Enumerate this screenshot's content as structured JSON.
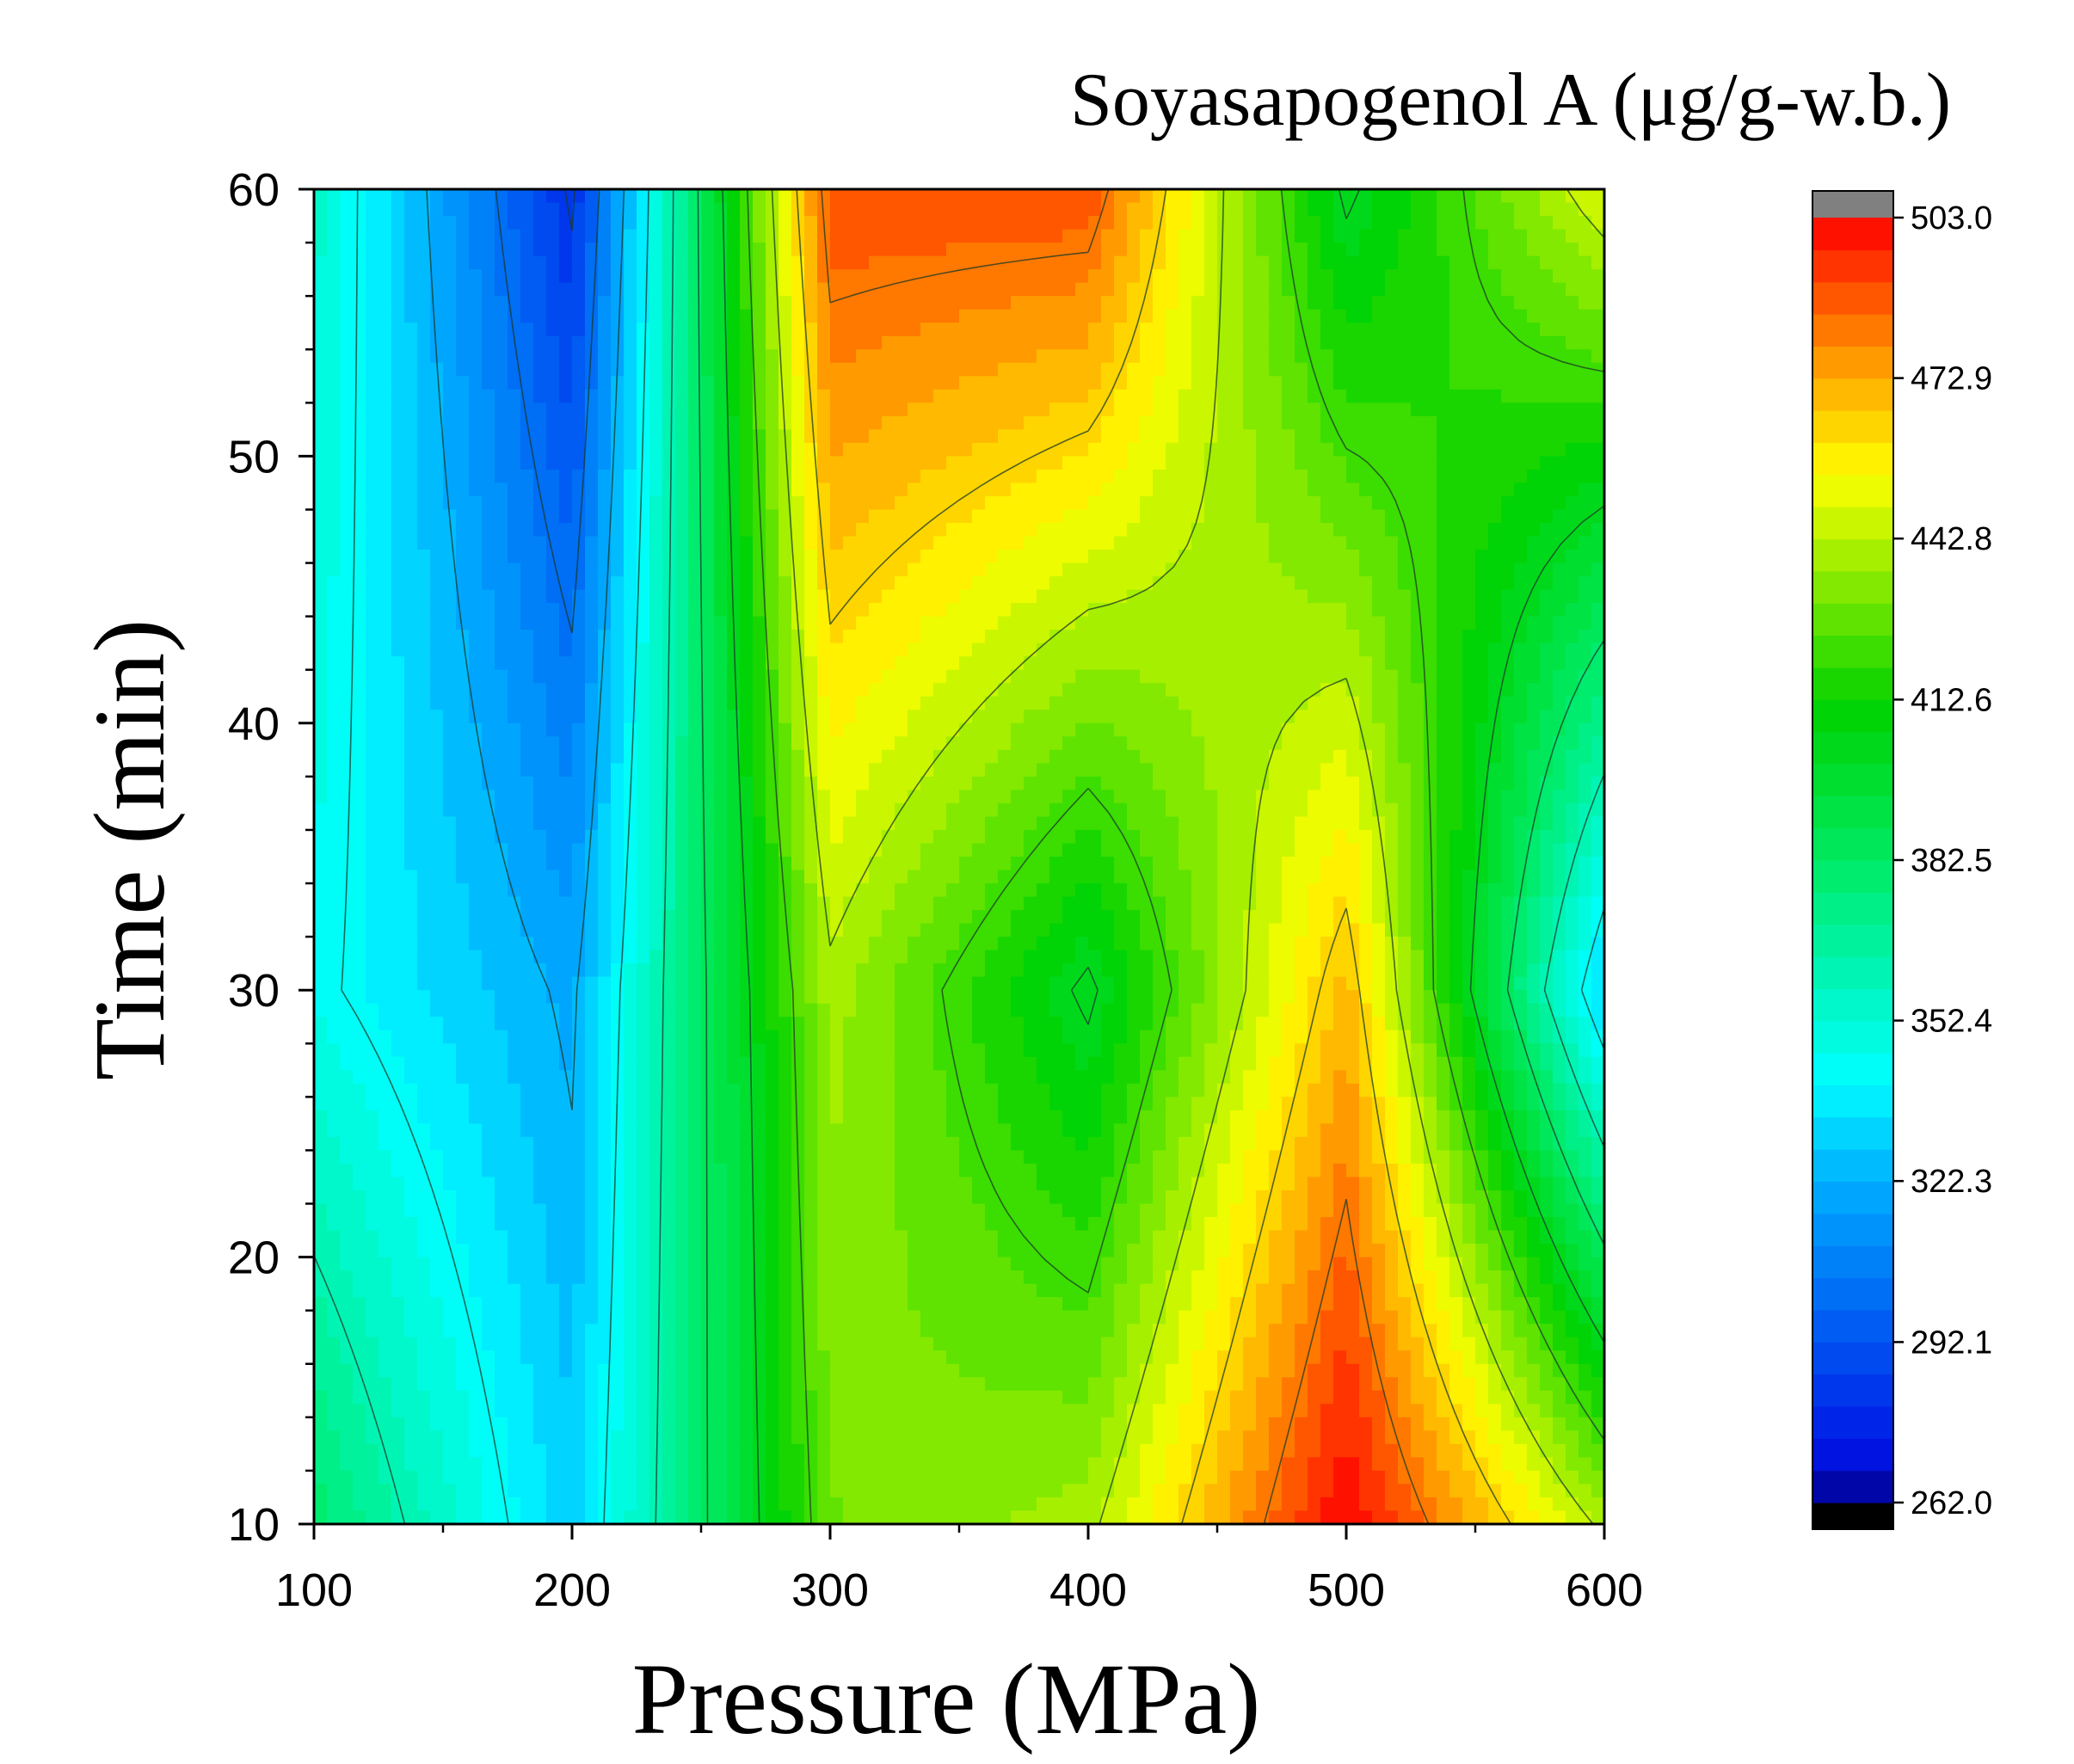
{
  "chart_data": {
    "type": "heatmap",
    "title": "Soyasapogenol  A (μg/g-w.b.)",
    "xlabel": "Pressure (MPa)",
    "ylabel": "Time (min)",
    "x": [
      100,
      200,
      300,
      400,
      500,
      600
    ],
    "y": [
      10,
      30,
      60
    ],
    "xlim": [
      100,
      600
    ],
    "ylim": [
      10,
      60
    ],
    "x_ticks": [
      "100",
      "200",
      "300",
      "400",
      "500",
      "600"
    ],
    "y_ticks": [
      "10",
      "20",
      "30",
      "40",
      "50",
      "60"
    ],
    "z": [
      [
        380,
        330,
        430,
        440,
        503,
        440
      ],
      [
        345,
        320,
        440,
        400,
        470,
        330
      ],
      [
        355,
        280,
        490,
        490,
        400,
        450
      ]
    ],
    "colorbar": {
      "min": 262.0,
      "max": 503.0,
      "tick_values": [
        262.0,
        292.1,
        322.3,
        352.4,
        382.5,
        412.6,
        442.8,
        472.9,
        503.0
      ],
      "tick_labels": [
        "262.0",
        "292.1",
        "322.3",
        "352.4",
        "382.5",
        "412.6",
        "442.8",
        "472.9",
        "503.0"
      ],
      "levels": 40,
      "under_color": "#000000",
      "over_color": "#808080"
    },
    "contour_lines": true,
    "grid": false,
    "legend": "colorbar-right"
  }
}
